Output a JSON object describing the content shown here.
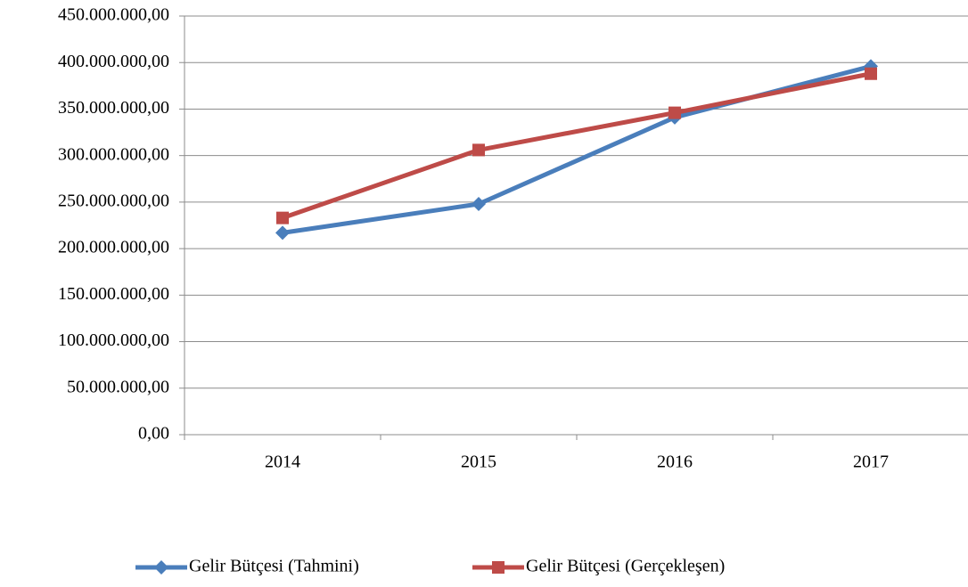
{
  "chart_data": {
    "type": "line",
    "categories": [
      "2014",
      "2015",
      "2016",
      "2017"
    ],
    "series": [
      {
        "name": "Gelir Bütçesi (Tahmini)",
        "color": "#4a7ebb",
        "marker": "diamond",
        "values": [
          217000000,
          248000000,
          341000000,
          396000000
        ]
      },
      {
        "name": "Gelir Bütçesi (Gerçekleşen)",
        "color": "#be4b48",
        "marker": "square",
        "values": [
          233000000,
          306000000,
          346000000,
          388000000
        ]
      }
    ],
    "ylim": [
      0,
      450000000
    ],
    "yticks": [
      {
        "value": 0,
        "label": "0,00"
      },
      {
        "value": 50000000,
        "label": "50.000.000,00"
      },
      {
        "value": 100000000,
        "label": "100.000.000,00"
      },
      {
        "value": 150000000,
        "label": "150.000.000,00"
      },
      {
        "value": 200000000,
        "label": "200.000.000,00"
      },
      {
        "value": 250000000,
        "label": "250.000.000,00"
      },
      {
        "value": 300000000,
        "label": "300.000.000,00"
      },
      {
        "value": 350000000,
        "label": "350.000.000,00"
      },
      {
        "value": 400000000,
        "label": "400.000.000,00"
      },
      {
        "value": 450000000,
        "label": "450.000.000,00"
      }
    ],
    "grid": true,
    "legend": "bottom"
  }
}
